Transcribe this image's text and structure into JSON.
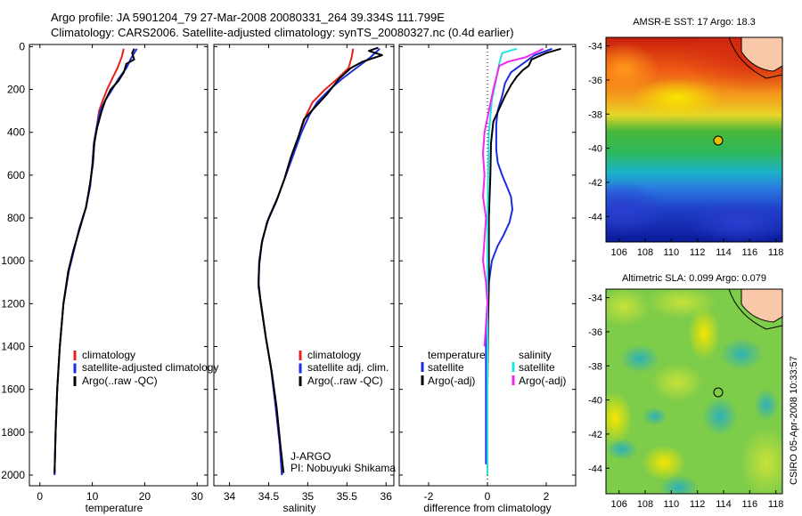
{
  "title_line1": "Argo profile: JA 5901204_79 27-Mar-2008 20080331_264 39.334S 111.799E",
  "title_line2": "Climatology: CARS2006. Satellite-adjusted climatology: synTS_20080327.nc (0.4d earlier)",
  "colors": {
    "climatology": "#e8201c",
    "satellite": "#1a2ee0",
    "argo": "#000000",
    "sal_satellite": "#28e0e0",
    "sal_argo": "#ee28ee"
  },
  "chart_data": [
    {
      "type": "line",
      "id": "temperature",
      "xlabel": "temperature",
      "ylabel": "",
      "xlim": [
        -2,
        32
      ],
      "ylim": [
        2050,
        -10
      ],
      "xticks": [
        "0",
        "10",
        "20",
        "30"
      ],
      "xtick_values": [
        0,
        10,
        20,
        30
      ],
      "yticks": [
        "0",
        "200",
        "400",
        "600",
        "800",
        "1000",
        "1200",
        "1400",
        "1600",
        "1800",
        "2000"
      ],
      "ytick_values": [
        0,
        200,
        400,
        600,
        800,
        1000,
        1200,
        1400,
        1600,
        1800,
        2000
      ],
      "series": [
        {
          "name": "climatology",
          "color": "#e8201c",
          "points": [
            [
              16,
              10
            ],
            [
              15.6,
              50
            ],
            [
              14.8,
              100
            ],
            [
              13.8,
              150
            ],
            [
              12.8,
              200
            ],
            [
              12,
              250
            ],
            [
              11.3,
              300
            ],
            [
              10.8,
              380
            ],
            [
              10.3,
              450
            ],
            [
              10,
              550
            ],
            [
              9.6,
              650
            ],
            [
              8.8,
              750
            ],
            [
              7.5,
              850
            ],
            [
              6.5,
              950
            ],
            [
              5.5,
              1050
            ],
            [
              4.5,
              1200
            ],
            [
              3.8,
              1400
            ],
            [
              3.3,
              1600
            ],
            [
              3,
              1800
            ],
            [
              2.8,
              2000
            ]
          ]
        },
        {
          "name": "satellite-adjusted climatology",
          "color": "#1a2ee0",
          "points": [
            [
              18.5,
              10
            ],
            [
              17.5,
              50
            ],
            [
              16.5,
              100
            ],
            [
              15,
              150
            ],
            [
              13.8,
              200
            ],
            [
              12.5,
              250
            ],
            [
              11.5,
              300
            ],
            [
              10.8,
              380
            ],
            [
              10.3,
              450
            ],
            [
              10,
              550
            ],
            [
              9.6,
              650
            ],
            [
              8.8,
              750
            ],
            [
              7.5,
              850
            ],
            [
              6.5,
              950
            ],
            [
              5.5,
              1050
            ],
            [
              4.5,
              1200
            ],
            [
              3.8,
              1400
            ],
            [
              3.3,
              1600
            ],
            [
              3,
              1800
            ],
            [
              2.8,
              2000
            ]
          ]
        },
        {
          "name": "Argo(..raw -QC)",
          "color": "#000000",
          "points": [
            [
              18,
              10
            ],
            [
              17.6,
              30
            ],
            [
              18,
              60
            ],
            [
              16.5,
              80
            ],
            [
              16,
              120
            ],
            [
              15,
              160
            ],
            [
              13.5,
              200
            ],
            [
              12.5,
              250
            ],
            [
              11.8,
              300
            ],
            [
              10.9,
              380
            ],
            [
              10.4,
              450
            ],
            [
              10.1,
              550
            ],
            [
              9.5,
              650
            ],
            [
              8.8,
              750
            ],
            [
              7.6,
              850
            ],
            [
              6.4,
              950
            ],
            [
              5.4,
              1050
            ],
            [
              4.5,
              1200
            ],
            [
              3.8,
              1400
            ],
            [
              3.3,
              1600
            ],
            [
              3,
              1800
            ],
            [
              2.8,
              1990
            ]
          ]
        }
      ],
      "legend": [
        {
          "label": "climatology",
          "color": "#e8201c"
        },
        {
          "label": "satellite-adjusted climatology",
          "color": "#1a2ee0"
        },
        {
          "label": "Argo(..raw -QC)",
          "color": "#000000"
        }
      ]
    },
    {
      "type": "line",
      "id": "salinity",
      "xlabel": "salinity",
      "ylabel": "",
      "xlim": [
        33.8,
        36.1
      ],
      "ylim": [
        2050,
        -10
      ],
      "xticks": [
        "34",
        "34.5",
        "35",
        "35.5",
        "36"
      ],
      "xtick_values": [
        34,
        34.5,
        35,
        35.5,
        36
      ],
      "series": [
        {
          "name": "climatology",
          "color": "#e8201c",
          "points": [
            [
              35.58,
              10
            ],
            [
              35.56,
              50
            ],
            [
              35.52,
              100
            ],
            [
              35.38,
              150
            ],
            [
              35.22,
              200
            ],
            [
              35.06,
              260
            ],
            [
              34.98,
              320
            ],
            [
              34.9,
              400
            ],
            [
              34.82,
              500
            ],
            [
              34.72,
              600
            ],
            [
              34.62,
              700
            ],
            [
              34.5,
              800
            ],
            [
              34.42,
              900
            ],
            [
              34.38,
              1000
            ],
            [
              34.37,
              1100
            ],
            [
              34.4,
              1200
            ],
            [
              34.46,
              1350
            ],
            [
              34.53,
              1500
            ],
            [
              34.58,
              1650
            ],
            [
              34.64,
              1850
            ],
            [
              34.67,
              2000
            ]
          ]
        },
        {
          "name": "satellite adj. clim.",
          "color": "#1a2ee0",
          "points": [
            [
              35.92,
              10
            ],
            [
              35.8,
              50
            ],
            [
              35.62,
              100
            ],
            [
              35.44,
              150
            ],
            [
              35.28,
              200
            ],
            [
              35.12,
              260
            ],
            [
              35.02,
              320
            ],
            [
              34.92,
              400
            ],
            [
              34.82,
              500
            ],
            [
              34.72,
              600
            ],
            [
              34.62,
              700
            ],
            [
              34.5,
              800
            ],
            [
              34.42,
              900
            ],
            [
              34.38,
              1000
            ],
            [
              34.37,
              1100
            ],
            [
              34.4,
              1200
            ],
            [
              34.46,
              1350
            ],
            [
              34.53,
              1500
            ],
            [
              34.58,
              1650
            ],
            [
              34.64,
              1850
            ],
            [
              34.67,
              2000
            ]
          ]
        },
        {
          "name": "Argo(..raw -QC)",
          "color": "#000000",
          "points": [
            [
              35.9,
              5
            ],
            [
              35.78,
              20
            ],
            [
              35.95,
              40
            ],
            [
              35.7,
              70
            ],
            [
              35.55,
              100
            ],
            [
              35.4,
              150
            ],
            [
              35.25,
              220
            ],
            [
              35.05,
              300
            ],
            [
              34.95,
              340
            ],
            [
              34.88,
              420
            ],
            [
              34.78,
              520
            ],
            [
              34.7,
              620
            ],
            [
              34.6,
              720
            ],
            [
              34.48,
              820
            ],
            [
              34.41,
              920
            ],
            [
              34.38,
              1020
            ],
            [
              34.37,
              1120
            ],
            [
              34.41,
              1220
            ],
            [
              34.47,
              1370
            ],
            [
              34.54,
              1520
            ],
            [
              34.6,
              1680
            ],
            [
              34.65,
              1860
            ],
            [
              34.69,
              1990
            ]
          ]
        }
      ],
      "legend": [
        {
          "label": "climatology",
          "color": "#e8201c"
        },
        {
          "label": "satellite adj. clim.",
          "color": "#1a2ee0"
        },
        {
          "label": "Argo(..raw -QC)",
          "color": "#000000"
        }
      ],
      "annotation": [
        "J-ARGO",
        "PI: Nobuyuki Shikama"
      ]
    },
    {
      "type": "line",
      "id": "difference",
      "xlabel": "difference from climatology",
      "ylabel": "",
      "xlim": [
        -3,
        3
      ],
      "ylim": [
        2050,
        -10
      ],
      "xticks": [
        "-2",
        "0",
        "2"
      ],
      "xtick_values": [
        -2,
        0,
        2
      ],
      "series": [
        {
          "name": "temperature satellite",
          "color": "#1a2ee0",
          "points": [
            [
              2.2,
              10
            ],
            [
              1.6,
              40
            ],
            [
              1.2,
              80
            ],
            [
              0.8,
              120
            ],
            [
              0.6,
              170
            ],
            [
              0.5,
              230
            ],
            [
              0.35,
              300
            ],
            [
              0.3,
              360
            ],
            [
              0.3,
              420
            ],
            [
              0.3,
              480
            ],
            [
              0.35,
              540
            ],
            [
              0.5,
              600
            ],
            [
              0.65,
              650
            ],
            [
              0.8,
              700
            ],
            [
              0.85,
              760
            ],
            [
              0.75,
              820
            ],
            [
              0.55,
              880
            ],
            [
              0.35,
              930
            ],
            [
              0.15,
              1000
            ],
            [
              0.05,
              1100
            ],
            [
              -0.05,
              1300
            ],
            [
              -0.05,
              1700
            ],
            [
              -0.05,
              1950
            ]
          ]
        },
        {
          "name": "temperature Argo(-adj)",
          "color": "#000000",
          "points": [
            [
              2.5,
              10
            ],
            [
              2,
              30
            ],
            [
              1.5,
              60
            ],
            [
              1.4,
              90
            ],
            [
              1.2,
              110
            ],
            [
              1,
              140
            ],
            [
              0.8,
              180
            ],
            [
              0.6,
              230
            ],
            [
              0.4,
              290
            ],
            [
              0.2,
              350
            ],
            [
              0.12,
              450
            ],
            [
              0.1,
              600
            ],
            [
              0.05,
              800
            ],
            [
              0.05,
              1000
            ],
            [
              0.05,
              1100
            ],
            [
              0.02,
              1300
            ],
            [
              0,
              1600
            ]
          ]
        },
        {
          "name": "salinity satellite",
          "color": "#28e0e0",
          "points": [
            [
              1,
              10
            ],
            [
              0.5,
              30
            ],
            [
              0.4,
              80
            ],
            [
              0.3,
              150
            ],
            [
              0.15,
              250
            ],
            [
              0.05,
              400
            ],
            [
              0,
              800
            ],
            [
              0,
              1200
            ],
            [
              0,
              1600
            ],
            [
              0,
              2000
            ]
          ]
        },
        {
          "name": "salinity Argo(-adj)",
          "color": "#ee28ee",
          "points": [
            [
              1.9,
              10
            ],
            [
              1.3,
              50
            ],
            [
              0.7,
              70
            ],
            [
              0.4,
              90
            ],
            [
              0.2,
              200
            ],
            [
              0.05,
              300
            ],
            [
              -0.1,
              400
            ],
            [
              -0.15,
              500
            ],
            [
              -0.1,
              600
            ],
            [
              -0.15,
              700
            ],
            [
              -0.05,
              800
            ],
            [
              -0.1,
              900
            ],
            [
              -0.15,
              1000
            ],
            [
              -0.05,
              1100
            ],
            [
              0,
              1200
            ],
            [
              -0.05,
              1300
            ],
            [
              -0.1,
              1400
            ]
          ]
        }
      ],
      "legend": [
        {
          "label": "temperature",
          "color": "",
          "header": true
        },
        {
          "label": "satellite",
          "color": "#1a2ee0"
        },
        {
          "label": "Argo(-adj)",
          "color": "#000000"
        },
        {
          "label": "salinity",
          "color": "",
          "header": true
        },
        {
          "label": "satellite",
          "color": "#28e0e0"
        },
        {
          "label": "Argo(-adj)",
          "color": "#ee28ee"
        }
      ]
    },
    {
      "type": "heatmap",
      "id": "sst-map",
      "title": "AMSR-E SST: 17 Argo: 18.3",
      "xlim": [
        105,
        118.5
      ],
      "ylim": [
        -45.5,
        -33.5
      ],
      "xticks": [
        "106",
        "108",
        "110",
        "112",
        "114",
        "116",
        "118"
      ],
      "xtick_values": [
        106,
        108,
        110,
        112,
        114,
        116,
        118
      ],
      "yticks": [
        "-34",
        "-36",
        "-38",
        "-40",
        "-42",
        "-44"
      ],
      "ytick_values": [
        -34,
        -36,
        -38,
        -40,
        -42,
        -44
      ],
      "float_position": {
        "lon": 111.799,
        "lat": -39.334
      }
    },
    {
      "type": "heatmap",
      "id": "sla-map",
      "title": "Altimetric SLA: 0.099 Argo: 0.079",
      "xlim": [
        105,
        118.5
      ],
      "ylim": [
        -45.5,
        -33.5
      ],
      "xticks": [
        "106",
        "108",
        "110",
        "112",
        "114",
        "116",
        "118"
      ],
      "xtick_values": [
        106,
        108,
        110,
        112,
        114,
        116,
        118
      ],
      "yticks": [
        "-34",
        "-36",
        "-38",
        "-40",
        "-42",
        "-44"
      ],
      "ytick_values": [
        -34,
        -36,
        -38,
        -40,
        -42,
        -44
      ],
      "float_position": {
        "lon": 111.799,
        "lat": -39.334
      }
    }
  ],
  "side_stamp": "CSIRO 05-Apr-2008 10:33:57"
}
